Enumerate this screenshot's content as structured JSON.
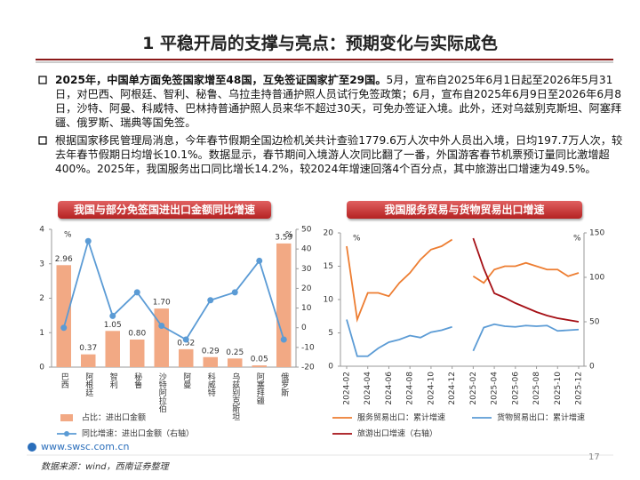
{
  "title": "1 平稳开局的支撑与亮点：预期变化与实际成色",
  "bullets": [
    {
      "bold": "2025年，中国单方面免签国家增至48国，互免签证国家扩至29国。",
      "text": "5月，宣布自2025年6月1日起至2026年5月31日，对巴西、阿根廷、智利、秘鲁、乌拉圭持普通护照人员试行免签政策；6月，宣布自2025年6月9日至2026年6月8日，沙特、阿曼、科威特、巴林持普通护照人员来华不超过30天，可免办签证入境。此外，还对乌兹别克斯坦、阿塞拜疆、俄罗斯、瑞典等国免签。"
    },
    {
      "text": "根据国家移民管理局消息，今年春节假期全国边检机关共计查验1779.6万人次中外人员出入境，日均197.7万人次，较去年春节假期日均增长10.1%。数据显示，春节期间入境游人次同比翻了一番，外国游客春节机票预订量同比激增超400%。2025年，我国服务出口同比增长14.2%，较2024年增速回落4个百分点，其中旅游出口增速为49.5%。"
    }
  ],
  "chart_data": [
    {
      "type": "bar",
      "title": "我国与部分免签国进出口金额同比增速",
      "categories": [
        "巴西",
        "阿根廷",
        "智利",
        "秘鲁",
        "沙特阿拉伯",
        "阿曼",
        "科威特",
        "乌兹别克斯坦",
        "阿塞拜疆",
        "俄罗斯"
      ],
      "ylabel": "%",
      "y2label": "%",
      "series": [
        {
          "name": "占比：进出口金额",
          "color": "#f2a984",
          "values": [
            2.96,
            0.37,
            1.05,
            0.8,
            1.7,
            0.52,
            0.29,
            0.25,
            0.05,
            3.59
          ],
          "value_labels": [
            "2.96",
            "0.37",
            "1.05",
            "0.80",
            "1.70",
            "0.52",
            "0.29",
            "0.25",
            "0.05",
            "3.59"
          ]
        },
        {
          "name": "同比增速：进出口金额（右轴）",
          "type": "line",
          "axis": "y2",
          "color": "#5b9bd5",
          "values": [
            0,
            44,
            6,
            18,
            1,
            -6,
            14,
            18,
            34,
            -6
          ]
        }
      ],
      "ylim": [
        0,
        4
      ],
      "yticks": [
        0,
        1,
        2,
        3,
        4
      ],
      "y2lim": [
        -20,
        50
      ],
      "y2ticks": [
        -20,
        -10,
        0,
        10,
        20,
        30,
        40,
        50
      ]
    },
    {
      "type": "line",
      "title": "我国服务贸易与货物贸易出口增速",
      "categories": [
        "2024-02",
        null,
        "2024-04",
        null,
        "2024-06",
        null,
        "2024-08",
        null,
        "2024-10",
        null,
        "2024-12",
        null,
        "2025-02",
        null,
        "2025-04",
        null,
        "2025-06",
        null,
        "2025-08",
        null,
        "2025-10",
        null,
        "2025-12"
      ],
      "ylabel": "%",
      "y2label": "%",
      "series": [
        {
          "name": "服务贸易出口：累计增速",
          "color": "#ed7d31",
          "values": [
            18,
            7,
            11,
            11,
            10.5,
            12.5,
            14,
            16,
            17.5,
            18,
            19,
            null,
            13.5,
            12.5,
            14.5,
            15,
            15,
            15.5,
            15,
            14.5,
            14.5,
            13.5,
            14
          ]
        },
        {
          "name": "货物贸易出口：累计增速",
          "color": "#5b9bd5",
          "values": [
            7,
            1.5,
            1.5,
            2.7,
            3.6,
            4,
            4.6,
            4.3,
            5.1,
            5.4,
            5.9,
            null,
            2.3,
            5.8,
            6.3,
            6,
            5.9,
            6.1,
            6,
            6.1,
            5.3,
            5.4,
            5.5
          ]
        },
        {
          "name": "旅游出口增速（右轴）",
          "axis": "y2",
          "color": "#a50f15",
          "values": [
            null,
            null,
            null,
            null,
            null,
            null,
            null,
            null,
            null,
            null,
            null,
            null,
            144,
            110,
            82,
            77,
            71,
            66,
            61,
            57,
            54,
            52,
            50
          ]
        }
      ],
      "ylim": [
        0,
        20
      ],
      "yticks": [
        0,
        5,
        10,
        15,
        20
      ],
      "y2lim": [
        0,
        150
      ],
      "y2ticks": [
        0,
        50,
        100,
        150
      ]
    }
  ],
  "footer": {
    "url": "www.swsc.com.cn",
    "source": "数据来源：wind，西南证券整理",
    "page": "17"
  }
}
